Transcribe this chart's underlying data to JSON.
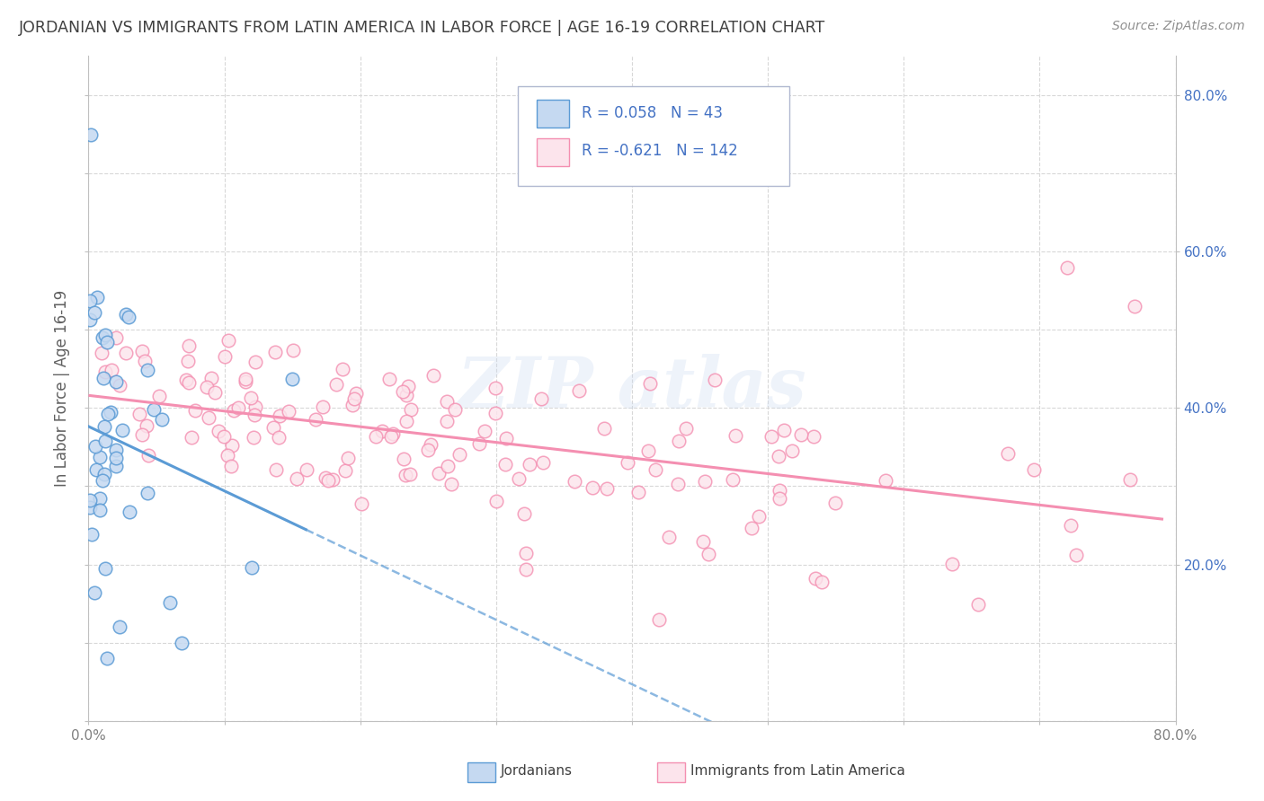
{
  "title": "JORDANIAN VS IMMIGRANTS FROM LATIN AMERICA IN LABOR FORCE | AGE 16-19 CORRELATION CHART",
  "source": "Source: ZipAtlas.com",
  "ylabel": "In Labor Force | Age 16-19",
  "xlim": [
    0.0,
    0.8
  ],
  "ylim": [
    0.0,
    0.85
  ],
  "xticks": [
    0.0,
    0.1,
    0.2,
    0.3,
    0.4,
    0.5,
    0.6,
    0.7,
    0.8
  ],
  "xtick_labels_bottom": [
    "0.0%",
    "",
    "",
    "",
    "",
    "",
    "",
    "",
    "80.0%"
  ],
  "yticks_right": [
    0.2,
    0.4,
    0.6,
    0.8
  ],
  "ytick_right_labels": [
    "20.0%",
    "40.0%",
    "60.0%",
    "80.0%"
  ],
  "jordanian_R": 0.058,
  "jordanian_N": 43,
  "latin_R": -0.621,
  "latin_N": 142,
  "blue_marker_color": "#5b9bd5",
  "blue_face": "#c5d9f1",
  "pink_marker_color": "#f48fb1",
  "pink_face": "#fce4ec",
  "legend_text_color": "#4472c4",
  "title_color": "#404040",
  "axis_color": "#c0c0c0",
  "grid_color": "#d8d8d8",
  "background_color": "#ffffff"
}
